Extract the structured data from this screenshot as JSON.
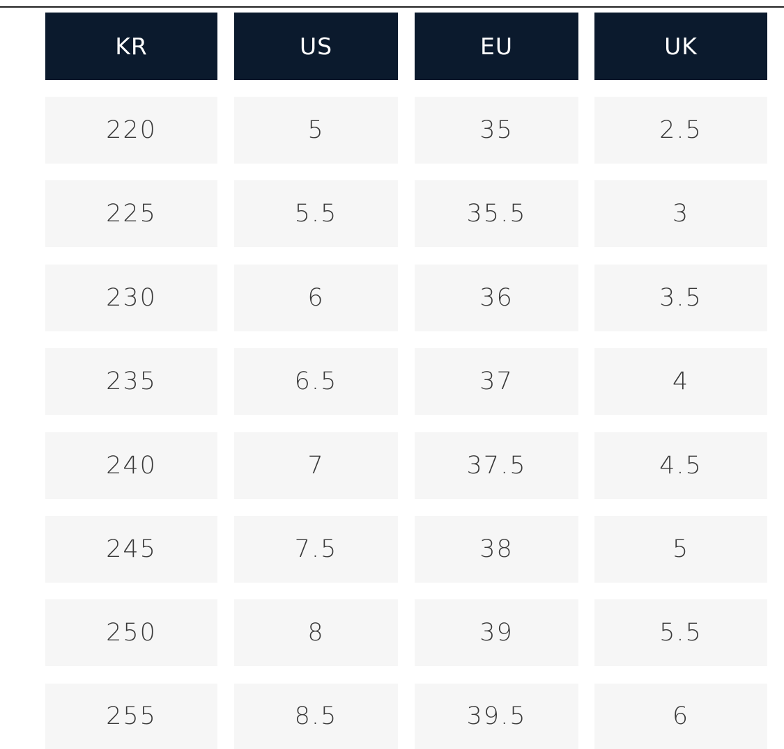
{
  "table": {
    "header": [
      "KR",
      "US",
      "EU",
      "UK"
    ],
    "rows": [
      [
        "220",
        "5",
        "35",
        "2.5"
      ],
      [
        "225",
        "5.5",
        "35.5",
        "3"
      ],
      [
        "230",
        "6",
        "36",
        "3.5"
      ],
      [
        "235",
        "6.5",
        "37",
        "4"
      ],
      [
        "240",
        "7",
        "37.5",
        "4.5"
      ],
      [
        "245",
        "7.5",
        "38",
        "5"
      ],
      [
        "250",
        "8",
        "39",
        "5.5"
      ],
      [
        "255",
        "8.5",
        "39.5",
        "6"
      ]
    ]
  }
}
